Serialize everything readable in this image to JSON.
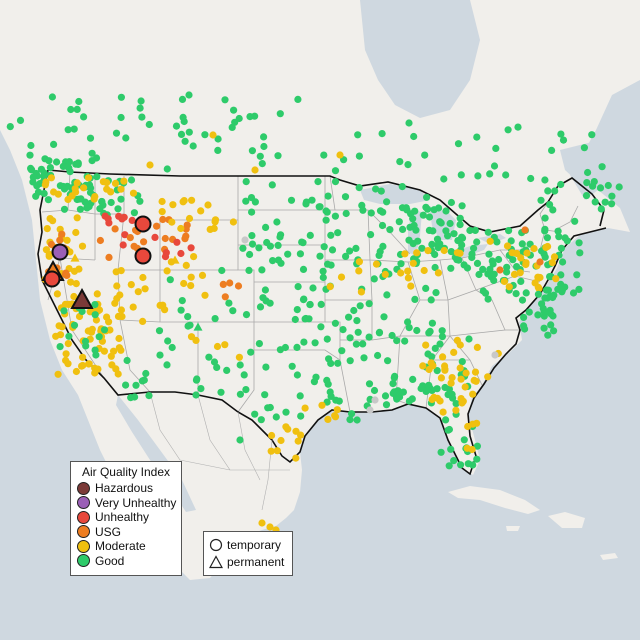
{
  "legend": {
    "title": "Air Quality Index",
    "levels": [
      {
        "label": "Hazardous",
        "color": "#7b3a38"
      },
      {
        "label": "Very Unhealthy",
        "color": "#9a5fb6"
      },
      {
        "label": "Unhealthy",
        "color": "#e8483c"
      },
      {
        "label": "USG",
        "color": "#ed7d21"
      },
      {
        "label": "Moderate",
        "color": "#f0c010"
      },
      {
        "label": "Good",
        "color": "#2ecb6a"
      }
    ]
  },
  "monitor_types": [
    {
      "label": "temporary",
      "shape": "circle-icon"
    },
    {
      "label": "permanent",
      "shape": "triangle-icon"
    }
  ],
  "colors": {
    "land": "#f1efeb",
    "water": "#cfd8e0",
    "state_border": "#a9a9a9",
    "country_border": "#111111",
    "no_data": "#c8c8c8"
  }
}
